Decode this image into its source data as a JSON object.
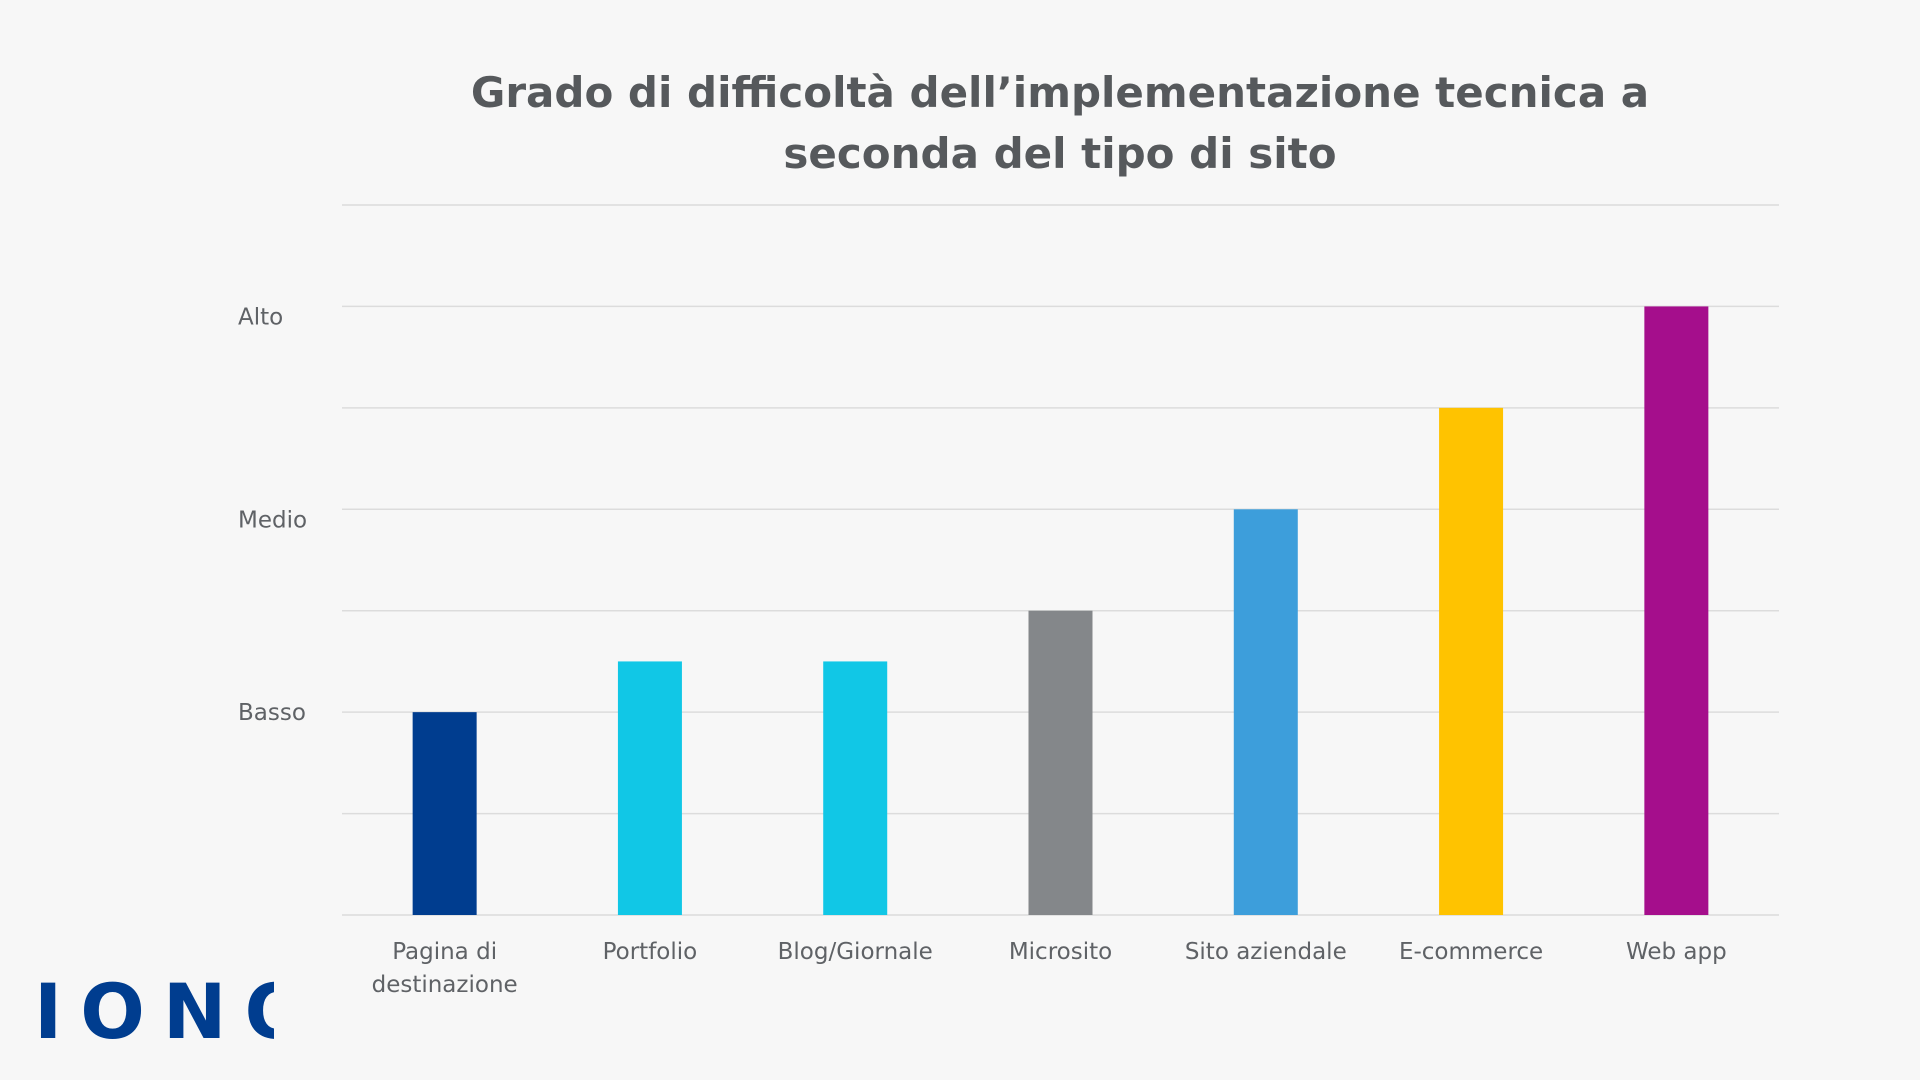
{
  "brand": {
    "name": "IONOS",
    "color": "#003d8f"
  },
  "chart_data": {
    "type": "bar",
    "title": "Grado di difficoltà dell’implementazione tecnica a seconda del tipo di sito",
    "title_lines": [
      "Grado di difficoltà dell’implementazione tecnica a",
      "seconda del tipo di sito"
    ],
    "xlabel": "",
    "ylabel": "",
    "categories": [
      "Pagina di destinazione",
      "Portfolio",
      "Blog/Giornale",
      "Microsito",
      "Sito aziendale",
      "E-commerce",
      "Web app"
    ],
    "category_lines": [
      [
        "Pagina di",
        "destinazione"
      ],
      [
        "Portfolio"
      ],
      [
        "Blog/Giornale"
      ],
      [
        "Microsito"
      ],
      [
        "Sito aziendale"
      ],
      [
        "E-commerce"
      ],
      [
        "Web app"
      ]
    ],
    "values": [
      2,
      2.5,
      2.5,
      3,
      4,
      5,
      6
    ],
    "colors": [
      "#003d8f",
      "#11c7e6",
      "#11c7e6",
      "#84878a",
      "#3d9edb",
      "#ffc300",
      "#a50e8c"
    ],
    "ylim": [
      0,
      7
    ],
    "ytick_labels": [
      {
        "label": "Basso",
        "value": 2
      },
      {
        "label": "Medio",
        "value": 3.9
      },
      {
        "label": "Alto",
        "value": 5.9
      }
    ],
    "grid": true,
    "grid_color": "#dcdcdc"
  }
}
